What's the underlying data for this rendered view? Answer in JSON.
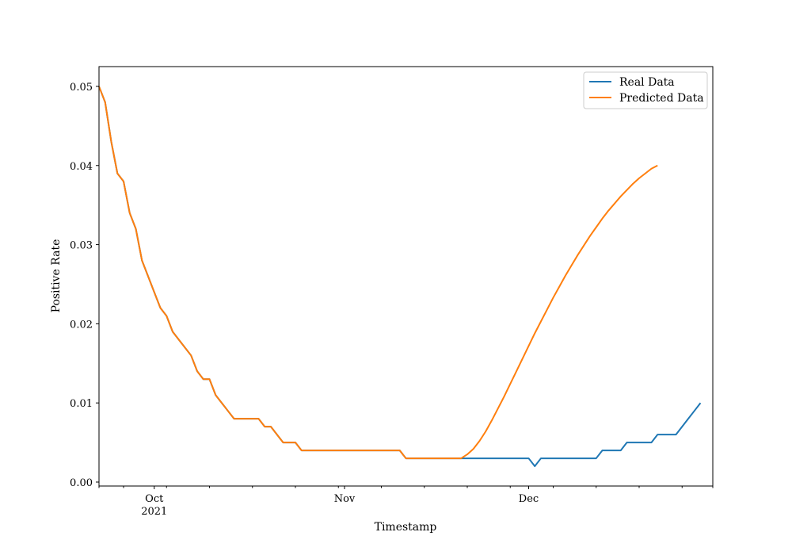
{
  "chart_data": {
    "type": "line",
    "xlabel": "Timestamp",
    "ylabel": "Positive Rate",
    "x_start": "2021-09-22",
    "x_end": "2021-12-31",
    "xlim": [
      "2021-09-22",
      "2021-12-31"
    ],
    "ylim": [
      -0.0005,
      0.0525
    ],
    "grid": false,
    "legend_position": "top-right",
    "x_major_ticks": [
      {
        "date": "2021-10-01",
        "label": "Oct",
        "sublabel": "2021"
      },
      {
        "date": "2021-11-01",
        "label": "Nov",
        "sublabel": ""
      },
      {
        "date": "2021-12-01",
        "label": "Dec",
        "sublabel": ""
      }
    ],
    "x_minor_ticks": [
      "2021-09-22",
      "2021-09-26",
      "2021-10-03",
      "2021-10-10",
      "2021-10-17",
      "2021-10-24",
      "2021-10-31",
      "2021-11-07",
      "2021-11-14",
      "2021-11-21",
      "2021-11-28",
      "2021-12-05",
      "2021-12-12",
      "2021-12-19",
      "2021-12-26",
      "2021-12-31"
    ],
    "y_ticks": [
      {
        "value": 0.0,
        "label": "0.00"
      },
      {
        "value": 0.01,
        "label": "0.01"
      },
      {
        "value": 0.02,
        "label": "0.02"
      },
      {
        "value": 0.03,
        "label": "0.03"
      },
      {
        "value": 0.04,
        "label": "0.04"
      },
      {
        "value": 0.05,
        "label": "0.05"
      }
    ],
    "series": [
      {
        "name": "Real Data",
        "color": "#1f77b4",
        "points": [
          [
            "2021-09-22",
            0.05
          ],
          [
            "2021-09-23",
            0.048
          ],
          [
            "2021-09-24",
            0.043
          ],
          [
            "2021-09-25",
            0.039
          ],
          [
            "2021-09-26",
            0.038
          ],
          [
            "2021-09-27",
            0.034
          ],
          [
            "2021-09-28",
            0.032
          ],
          [
            "2021-09-29",
            0.028
          ],
          [
            "2021-09-30",
            0.026
          ],
          [
            "2021-10-01",
            0.024
          ],
          [
            "2021-10-02",
            0.022
          ],
          [
            "2021-10-03",
            0.021
          ],
          [
            "2021-10-04",
            0.019
          ],
          [
            "2021-10-05",
            0.018
          ],
          [
            "2021-10-06",
            0.017
          ],
          [
            "2021-10-07",
            0.016
          ],
          [
            "2021-10-08",
            0.014
          ],
          [
            "2021-10-09",
            0.013
          ],
          [
            "2021-10-10",
            0.013
          ],
          [
            "2021-10-11",
            0.011
          ],
          [
            "2021-10-12",
            0.01
          ],
          [
            "2021-10-13",
            0.009
          ],
          [
            "2021-10-14",
            0.008
          ],
          [
            "2021-10-15",
            0.008
          ],
          [
            "2021-10-16",
            0.008
          ],
          [
            "2021-10-17",
            0.008
          ],
          [
            "2021-10-18",
            0.008
          ],
          [
            "2021-10-19",
            0.007
          ],
          [
            "2021-10-20",
            0.007
          ],
          [
            "2021-10-21",
            0.006
          ],
          [
            "2021-10-22",
            0.005
          ],
          [
            "2021-10-23",
            0.005
          ],
          [
            "2021-10-24",
            0.005
          ],
          [
            "2021-10-25",
            0.004
          ],
          [
            "2021-10-26",
            0.004
          ],
          [
            "2021-10-27",
            0.004
          ],
          [
            "2021-10-28",
            0.004
          ],
          [
            "2021-10-29",
            0.004
          ],
          [
            "2021-10-30",
            0.004
          ],
          [
            "2021-10-31",
            0.004
          ],
          [
            "2021-11-01",
            0.004
          ],
          [
            "2021-11-02",
            0.004
          ],
          [
            "2021-11-03",
            0.004
          ],
          [
            "2021-11-04",
            0.004
          ],
          [
            "2021-11-05",
            0.004
          ],
          [
            "2021-11-06",
            0.004
          ],
          [
            "2021-11-07",
            0.004
          ],
          [
            "2021-11-08",
            0.004
          ],
          [
            "2021-11-09",
            0.004
          ],
          [
            "2021-11-10",
            0.004
          ],
          [
            "2021-11-11",
            0.003
          ],
          [
            "2021-11-12",
            0.003
          ],
          [
            "2021-11-13",
            0.003
          ],
          [
            "2021-11-14",
            0.003
          ],
          [
            "2021-11-15",
            0.003
          ],
          [
            "2021-11-16",
            0.003
          ],
          [
            "2021-11-17",
            0.003
          ],
          [
            "2021-11-18",
            0.003
          ],
          [
            "2021-11-19",
            0.003
          ],
          [
            "2021-11-20",
            0.003
          ],
          [
            "2021-11-21",
            0.003
          ],
          [
            "2021-11-22",
            0.003
          ],
          [
            "2021-11-23",
            0.003
          ],
          [
            "2021-11-24",
            0.003
          ],
          [
            "2021-11-25",
            0.003
          ],
          [
            "2021-11-26",
            0.003
          ],
          [
            "2021-11-27",
            0.003
          ],
          [
            "2021-11-28",
            0.003
          ],
          [
            "2021-11-29",
            0.003
          ],
          [
            "2021-11-30",
            0.003
          ],
          [
            "2021-12-01",
            0.003
          ],
          [
            "2021-12-02",
            0.002
          ],
          [
            "2021-12-03",
            0.003
          ],
          [
            "2021-12-04",
            0.003
          ],
          [
            "2021-12-05",
            0.003
          ],
          [
            "2021-12-06",
            0.003
          ],
          [
            "2021-12-07",
            0.003
          ],
          [
            "2021-12-08",
            0.003
          ],
          [
            "2021-12-09",
            0.003
          ],
          [
            "2021-12-10",
            0.003
          ],
          [
            "2021-12-11",
            0.003
          ],
          [
            "2021-12-12",
            0.003
          ],
          [
            "2021-12-13",
            0.004
          ],
          [
            "2021-12-14",
            0.004
          ],
          [
            "2021-12-15",
            0.004
          ],
          [
            "2021-12-16",
            0.004
          ],
          [
            "2021-12-17",
            0.005
          ],
          [
            "2021-12-18",
            0.005
          ],
          [
            "2021-12-19",
            0.005
          ],
          [
            "2021-12-20",
            0.005
          ],
          [
            "2021-12-21",
            0.005
          ],
          [
            "2021-12-22",
            0.006
          ],
          [
            "2021-12-23",
            0.006
          ],
          [
            "2021-12-24",
            0.006
          ],
          [
            "2021-12-25",
            0.006
          ],
          [
            "2021-12-26",
            0.007
          ],
          [
            "2021-12-27",
            0.008
          ],
          [
            "2021-12-28",
            0.009
          ],
          [
            "2021-12-29",
            0.01
          ]
        ]
      },
      {
        "name": "Predicted Data",
        "color": "#ff7f0e",
        "points": [
          [
            "2021-09-22",
            0.05
          ],
          [
            "2021-09-23",
            0.048
          ],
          [
            "2021-09-24",
            0.043
          ],
          [
            "2021-09-25",
            0.039
          ],
          [
            "2021-09-26",
            0.038
          ],
          [
            "2021-09-27",
            0.034
          ],
          [
            "2021-09-28",
            0.032
          ],
          [
            "2021-09-29",
            0.028
          ],
          [
            "2021-09-30",
            0.026
          ],
          [
            "2021-10-01",
            0.024
          ],
          [
            "2021-10-02",
            0.022
          ],
          [
            "2021-10-03",
            0.021
          ],
          [
            "2021-10-04",
            0.019
          ],
          [
            "2021-10-05",
            0.018
          ],
          [
            "2021-10-06",
            0.017
          ],
          [
            "2021-10-07",
            0.016
          ],
          [
            "2021-10-08",
            0.014
          ],
          [
            "2021-10-09",
            0.013
          ],
          [
            "2021-10-10",
            0.013
          ],
          [
            "2021-10-11",
            0.011
          ],
          [
            "2021-10-12",
            0.01
          ],
          [
            "2021-10-13",
            0.009
          ],
          [
            "2021-10-14",
            0.008
          ],
          [
            "2021-10-15",
            0.008
          ],
          [
            "2021-10-16",
            0.008
          ],
          [
            "2021-10-17",
            0.008
          ],
          [
            "2021-10-18",
            0.008
          ],
          [
            "2021-10-19",
            0.007
          ],
          [
            "2021-10-20",
            0.007
          ],
          [
            "2021-10-21",
            0.006
          ],
          [
            "2021-10-22",
            0.005
          ],
          [
            "2021-10-23",
            0.005
          ],
          [
            "2021-10-24",
            0.005
          ],
          [
            "2021-10-25",
            0.004
          ],
          [
            "2021-10-26",
            0.004
          ],
          [
            "2021-10-27",
            0.004
          ],
          [
            "2021-10-28",
            0.004
          ],
          [
            "2021-10-29",
            0.004
          ],
          [
            "2021-10-30",
            0.004
          ],
          [
            "2021-10-31",
            0.004
          ],
          [
            "2021-11-01",
            0.004
          ],
          [
            "2021-11-02",
            0.004
          ],
          [
            "2021-11-03",
            0.004
          ],
          [
            "2021-11-04",
            0.004
          ],
          [
            "2021-11-05",
            0.004
          ],
          [
            "2021-11-06",
            0.004
          ],
          [
            "2021-11-07",
            0.004
          ],
          [
            "2021-11-08",
            0.004
          ],
          [
            "2021-11-09",
            0.004
          ],
          [
            "2021-11-10",
            0.004
          ],
          [
            "2021-11-11",
            0.003
          ],
          [
            "2021-11-12",
            0.003
          ],
          [
            "2021-11-13",
            0.003
          ],
          [
            "2021-11-14",
            0.003
          ],
          [
            "2021-11-15",
            0.003
          ],
          [
            "2021-11-16",
            0.003
          ],
          [
            "2021-11-17",
            0.003
          ],
          [
            "2021-11-18",
            0.003
          ],
          [
            "2021-11-19",
            0.003
          ],
          [
            "2021-11-20",
            0.003
          ],
          [
            "2021-11-21",
            0.0035
          ],
          [
            "2021-11-22",
            0.0042
          ],
          [
            "2021-11-23",
            0.0052
          ],
          [
            "2021-11-24",
            0.0064
          ],
          [
            "2021-11-25",
            0.0078
          ],
          [
            "2021-11-26",
            0.0093
          ],
          [
            "2021-11-27",
            0.0108
          ],
          [
            "2021-11-28",
            0.0124
          ],
          [
            "2021-11-29",
            0.014
          ],
          [
            "2021-11-30",
            0.0156
          ],
          [
            "2021-12-01",
            0.0172
          ],
          [
            "2021-12-02",
            0.0188
          ],
          [
            "2021-12-03",
            0.0203
          ],
          [
            "2021-12-04",
            0.0218
          ],
          [
            "2021-12-05",
            0.0233
          ],
          [
            "2021-12-06",
            0.0247
          ],
          [
            "2021-12-07",
            0.0261
          ],
          [
            "2021-12-08",
            0.0274
          ],
          [
            "2021-12-09",
            0.0287
          ],
          [
            "2021-12-10",
            0.0299
          ],
          [
            "2021-12-11",
            0.0311
          ],
          [
            "2021-12-12",
            0.0322
          ],
          [
            "2021-12-13",
            0.0333
          ],
          [
            "2021-12-14",
            0.0343
          ],
          [
            "2021-12-15",
            0.0352
          ],
          [
            "2021-12-16",
            0.0361
          ],
          [
            "2021-12-17",
            0.0369
          ],
          [
            "2021-12-18",
            0.0377
          ],
          [
            "2021-12-19",
            0.0384
          ],
          [
            "2021-12-20",
            0.039
          ],
          [
            "2021-12-21",
            0.0396
          ],
          [
            "2021-12-22",
            0.04
          ]
        ]
      }
    ]
  }
}
